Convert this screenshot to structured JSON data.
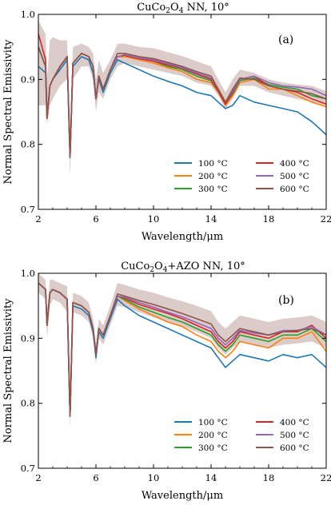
{
  "panels": [
    {
      "title_main": "CuCo",
      "title_sub1": "2",
      "title_mid": "O",
      "title_sub2": "4",
      "title_tail": " NN, 10°",
      "label": "(a)"
    },
    {
      "title_main": "CuCo",
      "title_sub1": "2",
      "title_mid": "O",
      "title_sub2": "4",
      "title_tail": "+AZO NN, 10°",
      "label": "(b)"
    }
  ],
  "chart_data": [
    {
      "type": "line",
      "title": "CuCo2O4 NN, 10°",
      "panel_label": "(a)",
      "xlabel": "Wavelength/μm",
      "ylabel": "Normal Spectral Emissivity",
      "xlim": [
        2,
        22
      ],
      "ylim": [
        0.7,
        1.0
      ],
      "xticks": [
        2,
        6,
        10,
        14,
        18,
        22
      ],
      "yticks": [
        0.7,
        0.8,
        0.9,
        1.0
      ],
      "grid": false,
      "legend_position": "lower-right",
      "legend_columns": 2,
      "x": [
        2.0,
        2.5,
        2.6,
        2.8,
        3.0,
        3.5,
        4.0,
        4.2,
        4.4,
        5.0,
        5.5,
        5.8,
        6.0,
        6.2,
        6.5,
        7.0,
        7.5,
        8.0,
        9.0,
        10.0,
        11.0,
        12.0,
        13.0,
        14.0,
        14.5,
        15.0,
        15.5,
        16.0,
        17.0,
        18.0,
        19.0,
        20.0,
        21.0,
        22.0
      ],
      "series": [
        {
          "name": "100 °C",
          "color": "#1f77b4",
          "values": [
            0.92,
            0.91,
            0.84,
            0.89,
            0.9,
            0.915,
            0.93,
            0.78,
            0.92,
            0.935,
            0.93,
            0.91,
            0.87,
            0.9,
            0.88,
            0.91,
            0.93,
            0.925,
            0.915,
            0.905,
            0.897,
            0.89,
            0.88,
            0.875,
            0.865,
            0.855,
            0.86,
            0.875,
            0.865,
            0.86,
            0.855,
            0.85,
            0.835,
            0.815
          ]
        },
        {
          "name": "200 °C",
          "color": "#ff7f0e",
          "values": [
            0.95,
            0.92,
            0.84,
            0.89,
            0.9,
            0.92,
            0.935,
            0.78,
            0.925,
            0.94,
            0.935,
            0.92,
            0.87,
            0.905,
            0.885,
            0.915,
            0.935,
            0.935,
            0.93,
            0.925,
            0.918,
            0.912,
            0.9,
            0.895,
            0.88,
            0.86,
            0.875,
            0.895,
            0.9,
            0.885,
            0.885,
            0.875,
            0.865,
            0.858
          ]
        },
        {
          "name": "300 °C",
          "color": "#2ca02c",
          "values": [
            0.95,
            0.92,
            0.84,
            0.89,
            0.9,
            0.92,
            0.935,
            0.78,
            0.925,
            0.94,
            0.935,
            0.92,
            0.87,
            0.905,
            0.885,
            0.915,
            0.935,
            0.937,
            0.932,
            0.928,
            0.92,
            0.915,
            0.905,
            0.898,
            0.882,
            0.862,
            0.878,
            0.898,
            0.902,
            0.892,
            0.888,
            0.885,
            0.875,
            0.87
          ]
        },
        {
          "name": "400 °C",
          "color": "#d62728",
          "values": [
            0.97,
            0.93,
            0.84,
            0.89,
            0.9,
            0.92,
            0.935,
            0.78,
            0.925,
            0.94,
            0.935,
            0.92,
            0.87,
            0.905,
            0.885,
            0.915,
            0.935,
            0.937,
            0.932,
            0.928,
            0.922,
            0.917,
            0.908,
            0.9,
            0.882,
            0.862,
            0.88,
            0.9,
            0.905,
            0.89,
            0.885,
            0.88,
            0.87,
            0.862
          ]
        },
        {
          "name": "500 °C",
          "color": "#9467bd",
          "values": [
            0.95,
            0.92,
            0.84,
            0.89,
            0.9,
            0.92,
            0.935,
            0.78,
            0.925,
            0.94,
            0.935,
            0.92,
            0.87,
            0.905,
            0.885,
            0.915,
            0.935,
            0.938,
            0.933,
            0.93,
            0.924,
            0.918,
            0.91,
            0.902,
            0.885,
            0.865,
            0.882,
            0.9,
            0.905,
            0.895,
            0.89,
            0.888,
            0.885,
            0.875
          ]
        },
        {
          "name": "600 °C",
          "color": "#8c564b",
          "values": [
            0.95,
            0.92,
            0.84,
            0.89,
            0.9,
            0.92,
            0.935,
            0.78,
            0.925,
            0.94,
            0.935,
            0.92,
            0.87,
            0.905,
            0.885,
            0.915,
            0.94,
            0.94,
            0.935,
            0.932,
            0.926,
            0.92,
            0.912,
            0.905,
            0.885,
            0.865,
            0.885,
            0.902,
            0.9,
            0.89,
            0.885,
            0.882,
            0.878,
            0.87
          ]
        }
      ],
      "band": {
        "color": "#8c564b",
        "lower": [
          0.86,
          0.86,
          0.83,
          0.86,
          0.87,
          0.89,
          0.9,
          0.75,
          0.9,
          0.92,
          0.92,
          0.9,
          0.85,
          0.88,
          0.87,
          0.9,
          0.92,
          0.925,
          0.92,
          0.915,
          0.91,
          0.905,
          0.895,
          0.89,
          0.875,
          0.855,
          0.87,
          0.89,
          0.89,
          0.88,
          0.875,
          0.87,
          0.865,
          0.86
        ],
        "upper": [
          0.99,
          0.97,
          0.9,
          0.96,
          0.965,
          0.96,
          0.96,
          0.82,
          0.95,
          0.955,
          0.95,
          0.94,
          0.9,
          0.93,
          0.91,
          0.93,
          0.955,
          0.955,
          0.95,
          0.948,
          0.942,
          0.936,
          0.928,
          0.92,
          0.9,
          0.88,
          0.9,
          0.915,
          0.91,
          0.9,
          0.895,
          0.892,
          0.89,
          0.882
        ]
      }
    },
    {
      "type": "line",
      "title": "CuCo2O4+AZO NN, 10°",
      "panel_label": "(b)",
      "xlabel": "Wavelength/μm",
      "ylabel": "Normal Spectral Emissivity",
      "xlim": [
        2,
        22
      ],
      "ylim": [
        0.7,
        1.0
      ],
      "xticks": [
        2,
        6,
        10,
        14,
        18,
        22
      ],
      "yticks": [
        0.7,
        0.8,
        0.9,
        1.0
      ],
      "grid": false,
      "legend_position": "lower-right",
      "legend_columns": 2,
      "x": [
        2.0,
        2.5,
        2.6,
        2.8,
        3.0,
        3.5,
        4.0,
        4.2,
        4.4,
        5.0,
        5.5,
        5.8,
        6.0,
        6.2,
        6.5,
        7.0,
        7.5,
        8.0,
        9.0,
        10.0,
        11.0,
        12.0,
        13.0,
        14.0,
        14.5,
        15.0,
        15.5,
        16.0,
        17.0,
        18.0,
        19.0,
        20.0,
        21.0,
        22.0
      ],
      "series": [
        {
          "name": "100 °C",
          "color": "#1f77b4",
          "values": [
            0.985,
            0.975,
            0.92,
            0.97,
            0.975,
            0.97,
            0.96,
            0.78,
            0.95,
            0.945,
            0.935,
            0.91,
            0.87,
            0.91,
            0.9,
            0.93,
            0.96,
            0.95,
            0.935,
            0.925,
            0.915,
            0.905,
            0.895,
            0.885,
            0.87,
            0.855,
            0.865,
            0.875,
            0.87,
            0.865,
            0.875,
            0.87,
            0.875,
            0.855
          ]
        },
        {
          "name": "200 °C",
          "color": "#ff7f0e",
          "values": [
            0.985,
            0.975,
            0.92,
            0.97,
            0.975,
            0.97,
            0.96,
            0.78,
            0.955,
            0.95,
            0.94,
            0.915,
            0.875,
            0.915,
            0.905,
            0.935,
            0.965,
            0.958,
            0.945,
            0.935,
            0.925,
            0.918,
            0.905,
            0.895,
            0.88,
            0.87,
            0.88,
            0.895,
            0.89,
            0.885,
            0.9,
            0.9,
            0.91,
            0.88
          ]
        },
        {
          "name": "300 °C",
          "color": "#2ca02c",
          "values": [
            0.985,
            0.975,
            0.92,
            0.97,
            0.975,
            0.97,
            0.96,
            0.78,
            0.955,
            0.95,
            0.94,
            0.915,
            0.875,
            0.915,
            0.905,
            0.935,
            0.965,
            0.96,
            0.948,
            0.94,
            0.932,
            0.925,
            0.915,
            0.905,
            0.89,
            0.88,
            0.89,
            0.905,
            0.9,
            0.895,
            0.905,
            0.905,
            0.915,
            0.895
          ]
        },
        {
          "name": "400 °C",
          "color": "#d62728",
          "values": [
            0.985,
            0.975,
            0.92,
            0.97,
            0.975,
            0.97,
            0.96,
            0.78,
            0.955,
            0.95,
            0.94,
            0.915,
            0.875,
            0.915,
            0.905,
            0.935,
            0.965,
            0.962,
            0.952,
            0.945,
            0.938,
            0.93,
            0.92,
            0.91,
            0.895,
            0.885,
            0.895,
            0.91,
            0.905,
            0.9,
            0.91,
            0.91,
            0.92,
            0.9
          ]
        },
        {
          "name": "500 °C",
          "color": "#9467bd",
          "values": [
            0.985,
            0.975,
            0.92,
            0.97,
            0.975,
            0.97,
            0.96,
            0.78,
            0.955,
            0.95,
            0.94,
            0.915,
            0.875,
            0.915,
            0.905,
            0.935,
            0.965,
            0.963,
            0.955,
            0.948,
            0.94,
            0.933,
            0.924,
            0.915,
            0.9,
            0.89,
            0.9,
            0.912,
            0.908,
            0.905,
            0.912,
            0.912,
            0.918,
            0.905
          ]
        },
        {
          "name": "600 °C",
          "color": "#8c564b",
          "values": [
            0.985,
            0.975,
            0.92,
            0.97,
            0.975,
            0.97,
            0.96,
            0.78,
            0.955,
            0.95,
            0.94,
            0.915,
            0.875,
            0.915,
            0.905,
            0.935,
            0.968,
            0.965,
            0.958,
            0.952,
            0.945,
            0.938,
            0.93,
            0.922,
            0.905,
            0.895,
            0.905,
            0.915,
            0.91,
            0.905,
            0.91,
            0.912,
            0.915,
            0.905
          ]
        }
      ],
      "band": {
        "color": "#8c564b",
        "lower": [
          0.97,
          0.96,
          0.9,
          0.95,
          0.96,
          0.955,
          0.94,
          0.76,
          0.94,
          0.935,
          0.925,
          0.9,
          0.86,
          0.9,
          0.89,
          0.92,
          0.95,
          0.948,
          0.94,
          0.932,
          0.925,
          0.918,
          0.91,
          0.9,
          0.885,
          0.875,
          0.885,
          0.895,
          0.89,
          0.885,
          0.89,
          0.892,
          0.895,
          0.885
        ],
        "upper": [
          1.0,
          0.99,
          0.94,
          0.99,
          0.99,
          0.985,
          0.98,
          0.8,
          0.97,
          0.965,
          0.955,
          0.93,
          0.89,
          0.93,
          0.92,
          0.95,
          0.985,
          0.982,
          0.975,
          0.97,
          0.963,
          0.957,
          0.95,
          0.942,
          0.925,
          0.915,
          0.925,
          0.935,
          0.93,
          0.925,
          0.93,
          0.932,
          0.935,
          0.925
        ]
      }
    }
  ]
}
